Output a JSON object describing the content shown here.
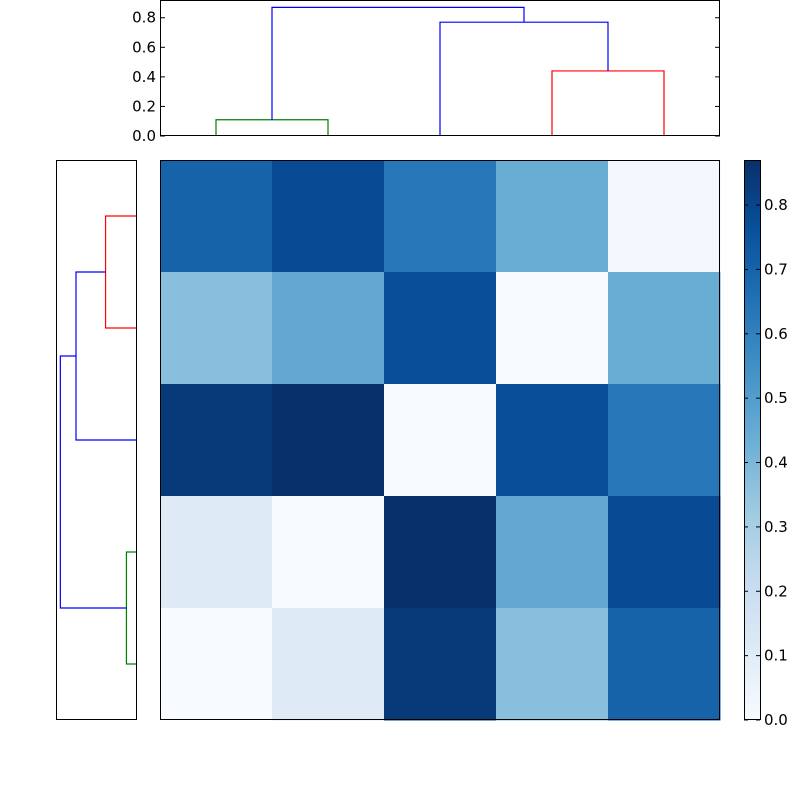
{
  "chart_data": [
    {
      "type": "dendrogram",
      "orientation": "top",
      "ylim": [
        0,
        0.92
      ],
      "yticks": [
        "0.0",
        "0.2",
        "0.4",
        "0.6",
        "0.8"
      ],
      "leaf_count": 5,
      "links": [
        {
          "left_leaf_pos": 0,
          "right_leaf_pos": 1,
          "height": 0.11,
          "color": "#008000"
        },
        {
          "left_leaf_pos": 3,
          "right_leaf_pos": 4,
          "height": 0.44,
          "color": "#ff0000"
        },
        {
          "left_leaf_pos": 2,
          "right_leaf_pos": 3.5,
          "height": 0.77,
          "color": "#0000ff"
        },
        {
          "left_leaf_pos": 0.5,
          "right_leaf_pos": 2.75,
          "height": 0.87,
          "color": "#0000ff"
        }
      ]
    },
    {
      "type": "dendrogram",
      "orientation": "left",
      "xlim": [
        0.92,
        0
      ],
      "leaf_count": 5,
      "links": [
        {
          "top_leaf_pos": 0,
          "bottom_leaf_pos": 1,
          "height": 0.35,
          "color": "#ff0000"
        },
        {
          "top_leaf_pos": 0.5,
          "bottom_leaf_pos": 2,
          "height": 0.69,
          "color": "#0000ff"
        },
        {
          "top_leaf_pos": 3,
          "bottom_leaf_pos": 4,
          "height": 0.11,
          "color": "#008000"
        },
        {
          "top_leaf_pos": 1.25,
          "bottom_leaf_pos": 3.5,
          "height": 0.87,
          "color": "#0000ff"
        }
      ]
    },
    {
      "type": "heatmap",
      "colormap": "Blues",
      "vmin": 0,
      "vmax": 0.87,
      "rows": 5,
      "cols": 5,
      "values": [
        [
          0.7,
          0.78,
          0.63,
          0.44,
          0.02
        ],
        [
          0.37,
          0.46,
          0.77,
          0.0,
          0.44
        ],
        [
          0.84,
          0.87,
          0.0,
          0.77,
          0.63
        ],
        [
          0.11,
          0.0,
          0.87,
          0.46,
          0.78
        ],
        [
          0.0,
          0.11,
          0.84,
          0.37,
          0.7
        ]
      ]
    },
    {
      "type": "colorbar",
      "colormap": "Blues",
      "range": [
        0,
        0.87
      ],
      "ticks": [
        "0.0",
        "0.1",
        "0.2",
        "0.3",
        "0.4",
        "0.5",
        "0.6",
        "0.7",
        "0.8"
      ]
    }
  ]
}
